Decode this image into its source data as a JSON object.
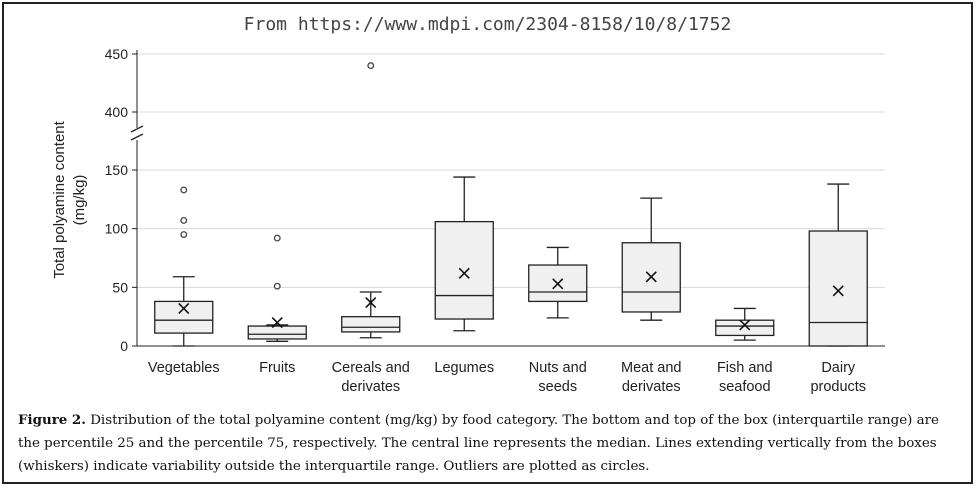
{
  "source_banner": "From https://www.mdpi.com/2304-8158/10/8/1752",
  "caption": {
    "label": "Figure 2.",
    "text": "Distribution of the total polyamine content (mg/kg) by food category. The bottom and top of the box (interquartile range) are the percentile 25 and the percentile 75, respectively. The central line represents the median. Lines extending vertically from the boxes (whiskers) indicate variability outside the interquartile range. Outliers are plotted as circles."
  },
  "colors": {
    "box_fill": "#f0f0f0",
    "stroke": "#222222",
    "grid": "#d8d8d8",
    "outlier": "#444444"
  },
  "chart_data": {
    "type": "box",
    "ylabel": [
      "Total polyamine content",
      "(mg/kg)"
    ],
    "y_ticks": [
      0,
      50,
      100,
      150,
      400,
      450
    ],
    "y_axis_break": [
      160,
      390
    ],
    "ylim": [
      0,
      450
    ],
    "grid": true,
    "categories": [
      [
        "Vegetables"
      ],
      [
        "Fruits"
      ],
      [
        "Cereals and",
        "derivates"
      ],
      [
        "Legumes"
      ],
      [
        "Nuts and",
        "seeds"
      ],
      [
        "Meat and",
        "derivates"
      ],
      [
        "Fish and",
        "seafood"
      ],
      [
        "Dairy",
        "products"
      ]
    ],
    "boxes": [
      {
        "min": 0,
        "q1": 11,
        "median": 22,
        "q3": 38,
        "max": 59,
        "mean": 32,
        "outliers": [
          95,
          107,
          133
        ]
      },
      {
        "min": 4,
        "q1": 6,
        "median": 10,
        "q3": 17,
        "max": 18,
        "mean": 20,
        "outliers": [
          51,
          92
        ]
      },
      {
        "min": 7,
        "q1": 12,
        "median": 16,
        "q3": 25,
        "max": 46,
        "mean": 37,
        "outliers": [
          440
        ]
      },
      {
        "min": 13,
        "q1": 23,
        "median": 43,
        "q3": 106,
        "max": 144,
        "mean": 62,
        "outliers": []
      },
      {
        "min": 24,
        "q1": 38,
        "median": 46,
        "q3": 69,
        "max": 84,
        "mean": 53,
        "outliers": []
      },
      {
        "min": 22,
        "q1": 29,
        "median": 46,
        "q3": 88,
        "max": 126,
        "mean": 59,
        "outliers": []
      },
      {
        "min": 5,
        "q1": 9,
        "median": 17,
        "q3": 22,
        "max": 32,
        "mean": 18,
        "outliers": []
      },
      {
        "min": 0,
        "q1": 0,
        "median": 20,
        "q3": 98,
        "max": 138,
        "mean": 47,
        "outliers": []
      }
    ]
  }
}
